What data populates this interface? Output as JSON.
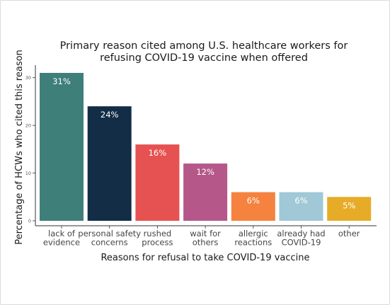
{
  "chart_data": {
    "type": "bar",
    "title": [
      "Primary reason cited among U.S. healthcare workers for",
      "refusing COVID-19 vaccine when offered"
    ],
    "xlabel": "Reasons for refusal to take COVID-19 vaccine",
    "ylabel": "Percentage of HCWs who cited this reason",
    "ylim": [
      0,
      32
    ],
    "yticks": [
      0,
      10,
      20,
      30
    ],
    "grid": false,
    "categories": [
      [
        "lack of",
        "evidence"
      ],
      [
        "personal safety",
        "concerns"
      ],
      [
        "rushed",
        "process"
      ],
      [
        "wait for",
        "others"
      ],
      [
        "allergic",
        "reactions"
      ],
      [
        "already had",
        "COVID-19"
      ],
      [
        "other"
      ]
    ],
    "values": [
      31,
      24,
      16,
      12,
      6,
      6,
      5
    ],
    "data_labels": [
      "31%",
      "24%",
      "16%",
      "12%",
      "6%",
      "6%",
      "5%"
    ],
    "colors": [
      "#3e7f7a",
      "#132d47",
      "#e65252",
      "#b55889",
      "#f5823f",
      "#a0c8d6",
      "#e6ac27"
    ]
  }
}
